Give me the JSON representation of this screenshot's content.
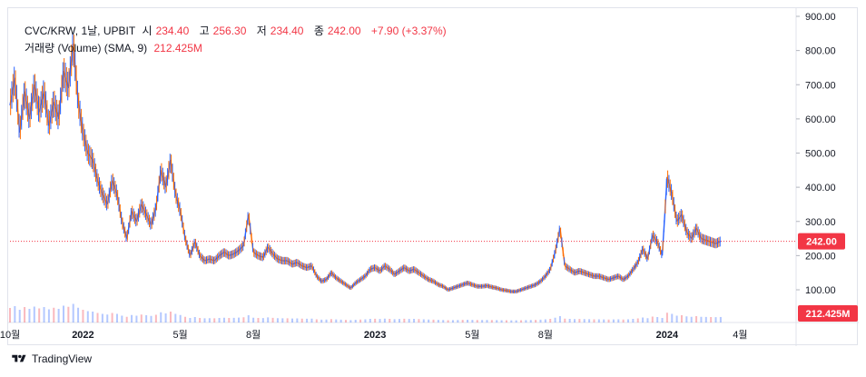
{
  "header": {
    "symbol": "CVC/KRW, 1날, UPBIT",
    "open_label": "시",
    "open": "234.40",
    "high_label": "고",
    "high": "256.30",
    "low_label": "저",
    "low": "234.40",
    "close_label": "종",
    "close": "242.00",
    "change": "+7.90 (+3.37%)"
  },
  "volume_legend": {
    "label": "거래량 (Volume) (SMA, 9)",
    "value": "212.425M"
  },
  "footer": {
    "brand": "TradingView"
  },
  "colors": {
    "up": "#26a69a",
    "down": "#f23645",
    "blue": "#2962ff",
    "orange": "#ff6d00",
    "last_price": "#f23645"
  },
  "chart_data": {
    "type": "line",
    "price_axis": {
      "ticks": [
        900,
        800,
        700,
        600,
        500,
        400,
        300,
        200,
        100
      ],
      "ylim": [
        40,
        920
      ]
    },
    "last_price": {
      "value": 242.0,
      "label": "242.00"
    },
    "volume_label": "212.425M",
    "time_labels": [
      {
        "label": "10월",
        "month": 0,
        "bold": false
      },
      {
        "label": "2022",
        "month": 3,
        "bold": true
      },
      {
        "label": "5월",
        "month": 7,
        "bold": false
      },
      {
        "label": "8월",
        "month": 10,
        "bold": false
      },
      {
        "label": "2023",
        "month": 15,
        "bold": true
      },
      {
        "label": "5월",
        "month": 19,
        "bold": false
      },
      {
        "label": "8월",
        "month": 22,
        "bold": false
      },
      {
        "label": "2024",
        "month": 27,
        "bold": true
      },
      {
        "label": "4월",
        "month": 30,
        "bold": false
      }
    ],
    "x_range_months": [
      0,
      32.3
    ],
    "series": [
      {
        "points": [
          [
            0,
            640
          ],
          [
            0.2,
            720
          ],
          [
            0.4,
            560
          ],
          [
            0.6,
            680
          ],
          [
            0.8,
            600
          ],
          [
            1.0,
            700
          ],
          [
            1.2,
            620
          ],
          [
            1.4,
            680
          ],
          [
            1.6,
            580
          ],
          [
            1.8,
            650
          ],
          [
            2.0,
            600
          ],
          [
            2.2,
            740
          ],
          [
            2.4,
            690
          ],
          [
            2.6,
            820
          ],
          [
            2.8,
            650
          ],
          [
            3.0,
            560
          ],
          [
            3.2,
            500
          ],
          [
            3.4,
            480
          ],
          [
            3.6,
            420
          ],
          [
            3.8,
            380
          ],
          [
            4.0,
            350
          ],
          [
            4.2,
            420
          ],
          [
            4.4,
            380
          ],
          [
            4.6,
            300
          ],
          [
            4.8,
            250
          ],
          [
            5.0,
            330
          ],
          [
            5.2,
            300
          ],
          [
            5.4,
            350
          ],
          [
            5.6,
            320
          ],
          [
            5.8,
            290
          ],
          [
            6.0,
            340
          ],
          [
            6.2,
            450
          ],
          [
            6.4,
            400
          ],
          [
            6.6,
            480
          ],
          [
            6.8,
            380
          ],
          [
            7.0,
            330
          ],
          [
            7.2,
            250
          ],
          [
            7.4,
            200
          ],
          [
            7.6,
            240
          ],
          [
            7.8,
            200
          ],
          [
            8.0,
            185
          ],
          [
            8.2,
            190
          ],
          [
            8.4,
            185
          ],
          [
            8.6,
            200
          ],
          [
            8.8,
            210
          ],
          [
            9.0,
            200
          ],
          [
            9.2,
            205
          ],
          [
            9.4,
            215
          ],
          [
            9.6,
            230
          ],
          [
            9.8,
            320
          ],
          [
            10.0,
            210
          ],
          [
            10.2,
            200
          ],
          [
            10.4,
            195
          ],
          [
            10.6,
            225
          ],
          [
            10.8,
            205
          ],
          [
            11.0,
            190
          ],
          [
            11.2,
            185
          ],
          [
            11.4,
            185
          ],
          [
            11.6,
            175
          ],
          [
            11.8,
            180
          ],
          [
            12.0,
            170
          ],
          [
            12.2,
            165
          ],
          [
            12.4,
            170
          ],
          [
            12.6,
            140
          ],
          [
            12.8,
            125
          ],
          [
            13.0,
            130
          ],
          [
            13.2,
            150
          ],
          [
            13.4,
            135
          ],
          [
            13.6,
            125
          ],
          [
            13.8,
            115
          ],
          [
            14.0,
            105
          ],
          [
            14.2,
            120
          ],
          [
            14.4,
            130
          ],
          [
            14.6,
            140
          ],
          [
            14.8,
            160
          ],
          [
            15.0,
            165
          ],
          [
            15.2,
            155
          ],
          [
            15.4,
            170
          ],
          [
            15.6,
            160
          ],
          [
            15.8,
            145
          ],
          [
            16.0,
            155
          ],
          [
            16.2,
            165
          ],
          [
            16.4,
            155
          ],
          [
            16.6,
            160
          ],
          [
            16.8,
            150
          ],
          [
            17.0,
            140
          ],
          [
            17.2,
            130
          ],
          [
            17.4,
            125
          ],
          [
            17.6,
            115
          ],
          [
            17.8,
            110
          ],
          [
            18.0,
            100
          ],
          [
            18.2,
            105
          ],
          [
            18.4,
            110
          ],
          [
            18.6,
            115
          ],
          [
            18.8,
            120
          ],
          [
            19.0,
            115
          ],
          [
            19.2,
            110
          ],
          [
            19.4,
            110
          ],
          [
            19.6,
            112
          ],
          [
            19.8,
            108
          ],
          [
            20.0,
            105
          ],
          [
            20.2,
            100
          ],
          [
            20.4,
            98
          ],
          [
            20.6,
            95
          ],
          [
            20.8,
            95
          ],
          [
            21.0,
            100
          ],
          [
            21.2,
            105
          ],
          [
            21.4,
            110
          ],
          [
            21.6,
            115
          ],
          [
            21.8,
            125
          ],
          [
            22.0,
            140
          ],
          [
            22.2,
            160
          ],
          [
            22.4,
            210
          ],
          [
            22.6,
            280
          ],
          [
            22.8,
            170
          ],
          [
            23.0,
            160
          ],
          [
            23.2,
            150
          ],
          [
            23.4,
            155
          ],
          [
            23.6,
            150
          ],
          [
            23.8,
            145
          ],
          [
            24.0,
            140
          ],
          [
            24.2,
            140
          ],
          [
            24.4,
            135
          ],
          [
            24.6,
            130
          ],
          [
            24.8,
            135
          ],
          [
            25.0,
            140
          ],
          [
            25.2,
            130
          ],
          [
            25.4,
            140
          ],
          [
            25.6,
            160
          ],
          [
            25.8,
            180
          ],
          [
            26.0,
            220
          ],
          [
            26.2,
            190
          ],
          [
            26.4,
            260
          ],
          [
            26.6,
            240
          ],
          [
            26.8,
            200
          ],
          [
            27.0,
            430
          ],
          [
            27.2,
            380
          ],
          [
            27.4,
            300
          ],
          [
            27.6,
            320
          ],
          [
            27.8,
            270
          ],
          [
            28.0,
            250
          ],
          [
            28.2,
            280
          ],
          [
            28.4,
            250
          ],
          [
            28.6,
            245
          ],
          [
            28.8,
            240
          ],
          [
            29.0,
            235
          ],
          [
            29.2,
            242
          ]
        ]
      }
    ]
  }
}
